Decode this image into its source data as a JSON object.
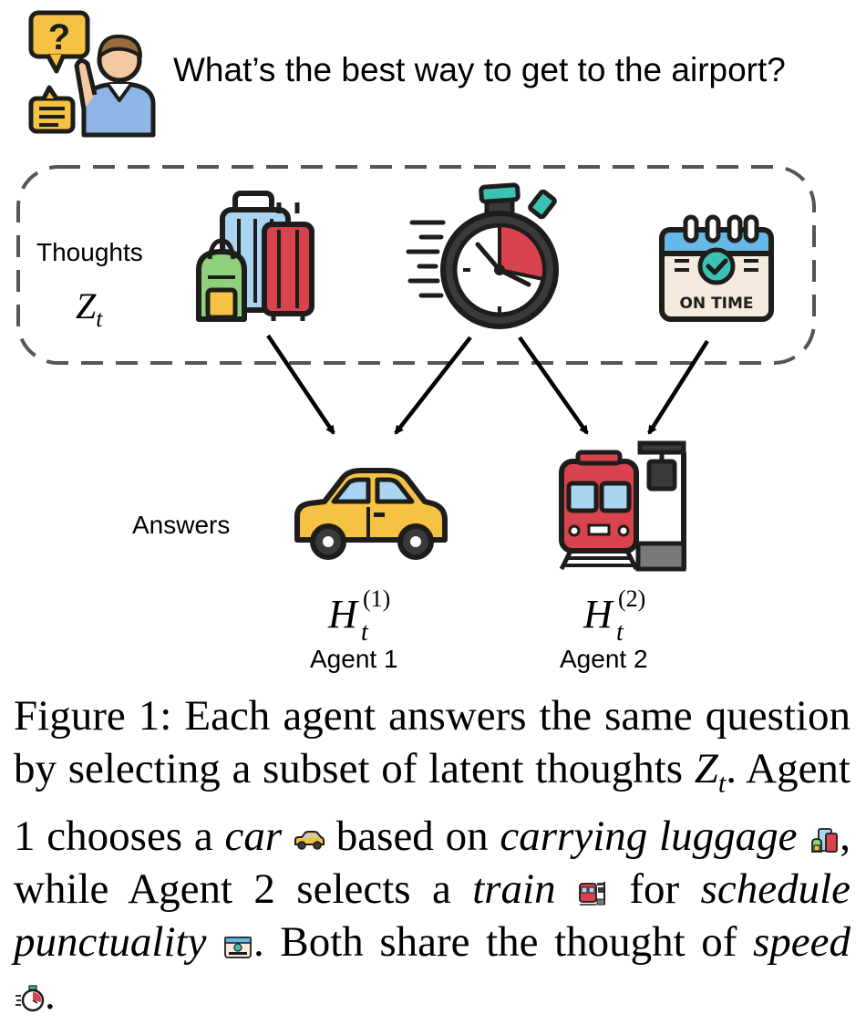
{
  "question": "What’s the best way to get to the airport?",
  "thoughts": {
    "label": "Thoughts",
    "symbol": "Z",
    "subscript": "t"
  },
  "answers": {
    "label": "Answers"
  },
  "agents": [
    {
      "label": "Agent 1",
      "symbol": "H",
      "sub": "t",
      "sup": "(1)"
    },
    {
      "label": "Agent 2",
      "symbol": "H",
      "sub": "t",
      "sup": "(2)"
    }
  ],
  "icons": {
    "person": "person-question-icon",
    "luggage": "luggage-icon",
    "stopwatch": "stopwatch-icon",
    "calendar": "on-time-calendar-icon",
    "car": "car-icon",
    "train": "train-icon",
    "calendar_text": "ON TIME"
  },
  "caption": {
    "p1": "Figure 1:  Each agent answers the same question by selecting a subset of latent thoughts ",
    "z": "Z",
    "zsub": "t",
    "p2": ". Agent 1 chooses a ",
    "car": "car",
    "p3": " based on ",
    "luggage": "carrying luggage",
    "p4": ", while Agent 2 selects a ",
    "train": "train",
    "p5": " for ",
    "punctuality": "schedule punctuality",
    "p6": ". Both share the thought of ",
    "speed": "speed",
    "p7": "."
  },
  "colors": {
    "yellow": "#f6c244",
    "red": "#d9434e",
    "blue": "#a9d4f2",
    "teal": "#3ac3b4",
    "green": "#8fd07a",
    "outline": "#1d1d1b"
  }
}
